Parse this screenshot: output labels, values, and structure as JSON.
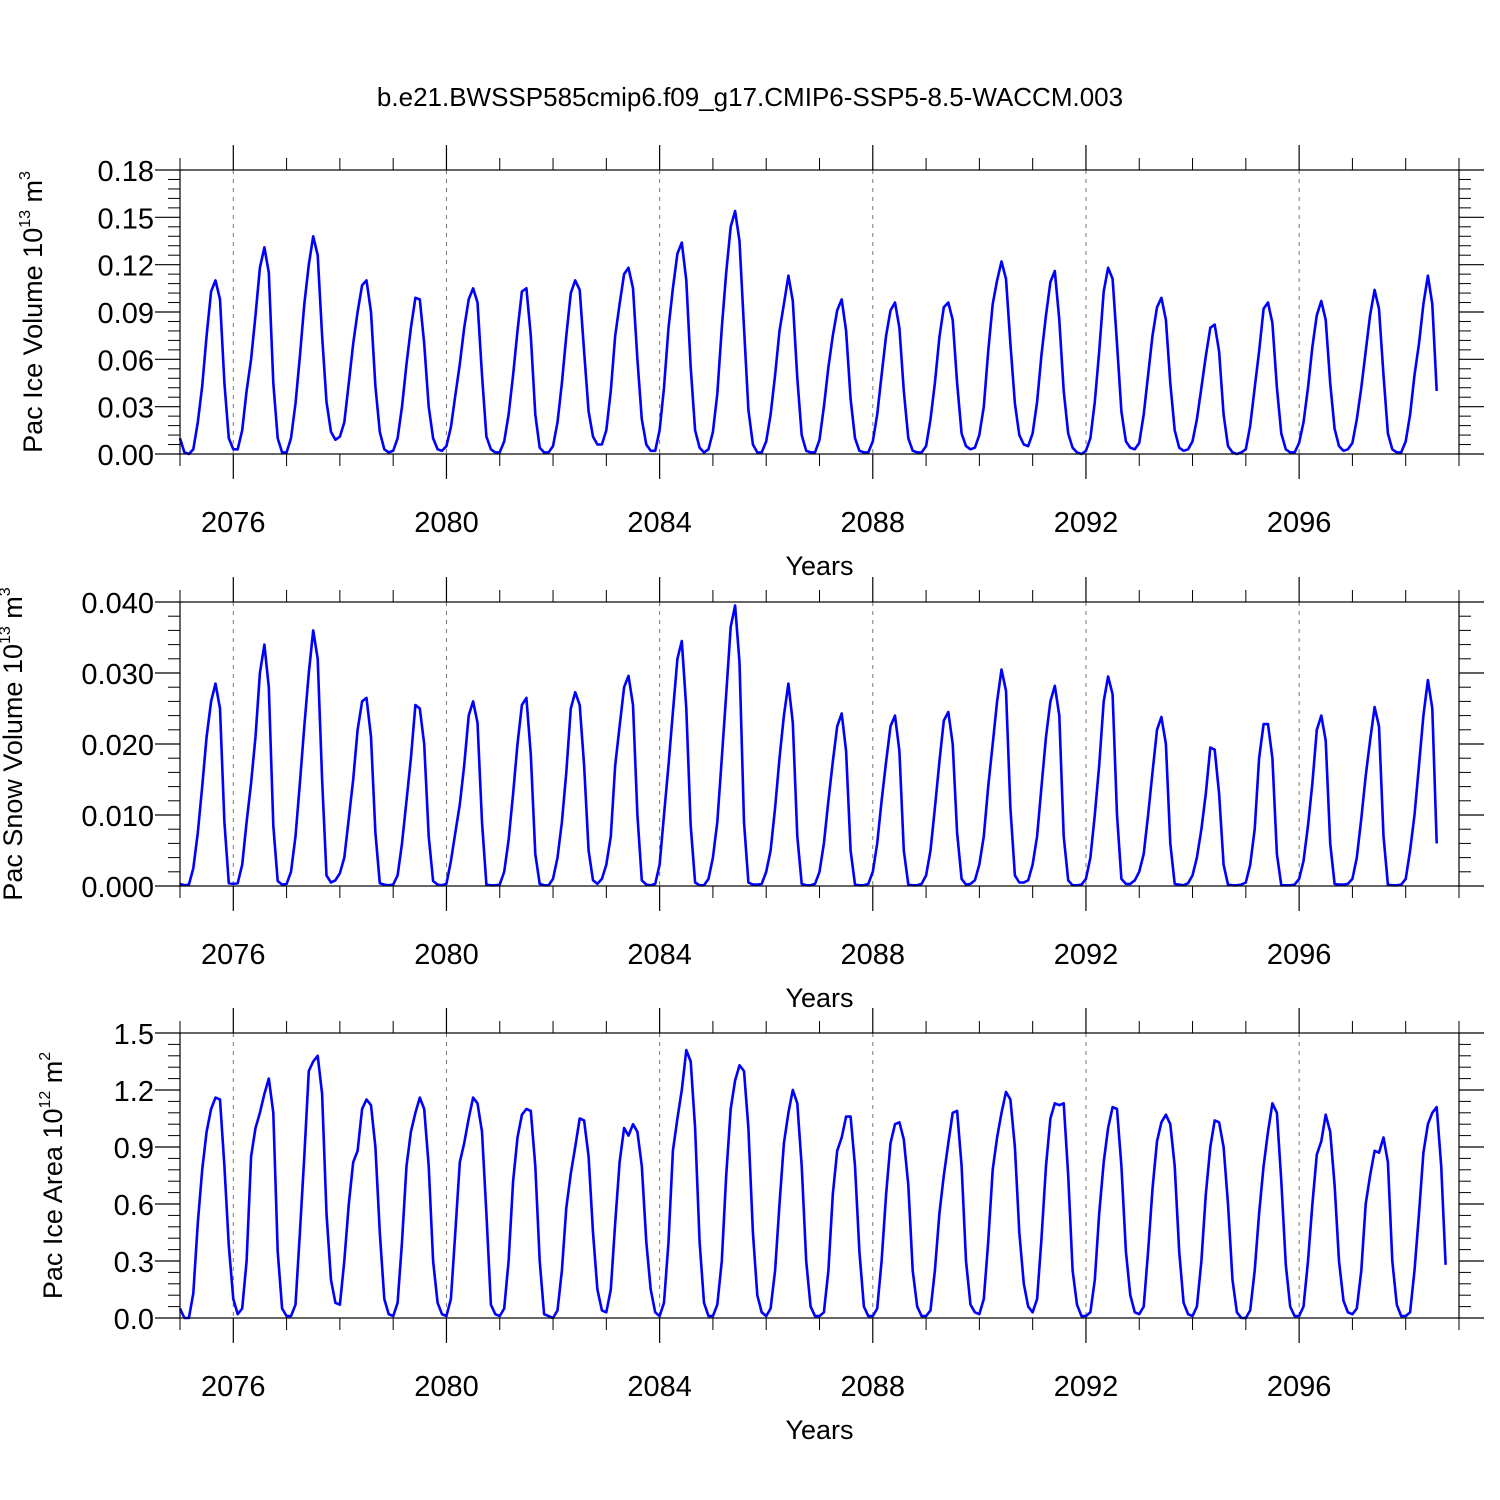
{
  "figure": {
    "title": "b.e21.BWSSP585cmip6.f09_g17.CMIP6-SSP5-8.5-WACCM.003"
  },
  "colors": {
    "series": "#0000ff",
    "axes": "#000000",
    "gridlines": "#777777"
  },
  "chart_data": [
    {
      "type": "line",
      "title": "",
      "xlabel": "Years",
      "ylabel": "Pac Ice Volume 10 m",
      "ylabel_parts": {
        "base": "Pac Ice Volume 10",
        "exp": "13",
        "unit": " m",
        "unit_exp": "3"
      },
      "xlim": [
        2075,
        2099
      ],
      "ylim": [
        0,
        0.18
      ],
      "x_ticks": [
        2076,
        2080,
        2084,
        2088,
        2092,
        2096
      ],
      "x_tick_labels": [
        "2076",
        "2080",
        "2084",
        "2088",
        "2092",
        "2096"
      ],
      "y_ticks": [
        0.0,
        0.03,
        0.06,
        0.09,
        0.12,
        0.15,
        0.18
      ],
      "y_tick_labels": [
        "0.00",
        "0.03",
        "0.06",
        "0.09",
        "0.12",
        "0.15",
        "0.18"
      ],
      "grid": "vertical dashed lines at labeled years",
      "series": [
        {
          "x_start": 2075.0,
          "x_step": 0.08333,
          "values": [
            0.01,
            0.001,
            0.0,
            0.003,
            0.02,
            0.043,
            0.075,
            0.103,
            0.11,
            0.098,
            0.045,
            0.01,
            0.003,
            0.003,
            0.015,
            0.04,
            0.06,
            0.088,
            0.118,
            0.131,
            0.115,
            0.045,
            0.01,
            0.001,
            0.001,
            0.01,
            0.032,
            0.062,
            0.095,
            0.12,
            0.138,
            0.126,
            0.075,
            0.033,
            0.014,
            0.009,
            0.011,
            0.02,
            0.045,
            0.07,
            0.09,
            0.107,
            0.11,
            0.09,
            0.043,
            0.014,
            0.003,
            0.001,
            0.002,
            0.01,
            0.03,
            0.057,
            0.08,
            0.099,
            0.098,
            0.07,
            0.03,
            0.01,
            0.003,
            0.002,
            0.005,
            0.017,
            0.037,
            0.057,
            0.08,
            0.098,
            0.105,
            0.096,
            0.05,
            0.011,
            0.003,
            0.001,
            0.001,
            0.008,
            0.025,
            0.05,
            0.078,
            0.103,
            0.105,
            0.075,
            0.025,
            0.004,
            0.001,
            0.001,
            0.005,
            0.02,
            0.045,
            0.075,
            0.102,
            0.11,
            0.104,
            0.065,
            0.027,
            0.011,
            0.006,
            0.006,
            0.015,
            0.04,
            0.075,
            0.095,
            0.114,
            0.118,
            0.105,
            0.06,
            0.022,
            0.006,
            0.002,
            0.002,
            0.015,
            0.042,
            0.08,
            0.105,
            0.127,
            0.134,
            0.11,
            0.055,
            0.015,
            0.004,
            0.001,
            0.003,
            0.014,
            0.038,
            0.08,
            0.115,
            0.144,
            0.154,
            0.135,
            0.08,
            0.028,
            0.006,
            0.001,
            0.001,
            0.008,
            0.025,
            0.05,
            0.078,
            0.095,
            0.113,
            0.097,
            0.048,
            0.012,
            0.002,
            0.001,
            0.001,
            0.009,
            0.03,
            0.055,
            0.075,
            0.091,
            0.098,
            0.078,
            0.035,
            0.01,
            0.002,
            0.001,
            0.001,
            0.008,
            0.025,
            0.05,
            0.075,
            0.091,
            0.096,
            0.08,
            0.04,
            0.01,
            0.002,
            0.001,
            0.001,
            0.005,
            0.022,
            0.045,
            0.074,
            0.093,
            0.096,
            0.085,
            0.045,
            0.013,
            0.005,
            0.003,
            0.004,
            0.012,
            0.03,
            0.065,
            0.095,
            0.11,
            0.122,
            0.111,
            0.07,
            0.032,
            0.012,
            0.006,
            0.005,
            0.013,
            0.033,
            0.063,
            0.088,
            0.109,
            0.116,
            0.085,
            0.04,
            0.013,
            0.004,
            0.001,
            0.0,
            0.002,
            0.01,
            0.033,
            0.065,
            0.103,
            0.118,
            0.111,
            0.07,
            0.027,
            0.008,
            0.004,
            0.003,
            0.007,
            0.025,
            0.05,
            0.075,
            0.093,
            0.099,
            0.085,
            0.045,
            0.015,
            0.004,
            0.002,
            0.003,
            0.008,
            0.022,
            0.042,
            0.062,
            0.08,
            0.082,
            0.065,
            0.025,
            0.005,
            0.001,
            0.0,
            0.001,
            0.003,
            0.018,
            0.042,
            0.065,
            0.092,
            0.096,
            0.083,
            0.042,
            0.013,
            0.003,
            0.001,
            0.001,
            0.007,
            0.02,
            0.042,
            0.068,
            0.088,
            0.097,
            0.085,
            0.045,
            0.016,
            0.005,
            0.002,
            0.003,
            0.007,
            0.022,
            0.042,
            0.065,
            0.088,
            0.104,
            0.092,
            0.05,
            0.013,
            0.003,
            0.001,
            0.001,
            0.008,
            0.025,
            0.05,
            0.07,
            0.095,
            0.113,
            0.095,
            0.04
          ]
        }
      ]
    },
    {
      "type": "line",
      "title": "",
      "xlabel": "Years",
      "ylabel": "Pac Snow Volume 10 m",
      "ylabel_parts": {
        "base": "Pac Snow Volume 10",
        "exp": "13",
        "unit": " m",
        "unit_exp": "3"
      },
      "xlim": [
        2075,
        2099
      ],
      "ylim": [
        0,
        0.04
      ],
      "x_ticks": [
        2076,
        2080,
        2084,
        2088,
        2092,
        2096
      ],
      "x_tick_labels": [
        "2076",
        "2080",
        "2084",
        "2088",
        "2092",
        "2096"
      ],
      "y_ticks": [
        0.0,
        0.01,
        0.02,
        0.03,
        0.04
      ],
      "y_tick_labels": [
        "0.000",
        "0.010",
        "0.020",
        "0.030",
        "0.040"
      ],
      "grid": "vertical dashed lines at labeled years",
      "series": [
        {
          "x_start": 2075.0,
          "x_step": 0.08333,
          "values": [
            0.0003,
            0.0001,
            0.0002,
            0.0025,
            0.0075,
            0.014,
            0.021,
            0.026,
            0.0285,
            0.025,
            0.009,
            0.0004,
            0.0003,
            0.0004,
            0.003,
            0.009,
            0.0145,
            0.021,
            0.03,
            0.034,
            0.028,
            0.0085,
            0.0007,
            0.0002,
            0.0003,
            0.002,
            0.007,
            0.0145,
            0.0225,
            0.03,
            0.036,
            0.032,
            0.015,
            0.0015,
            0.0005,
            0.0008,
            0.0018,
            0.004,
            0.0095,
            0.015,
            0.022,
            0.026,
            0.0265,
            0.021,
            0.0075,
            0.0004,
            0.0002,
            0.0001,
            0.0002,
            0.0015,
            0.006,
            0.012,
            0.018,
            0.0255,
            0.025,
            0.02,
            0.007,
            0.0007,
            0.0002,
            0.0001,
            0.0003,
            0.0035,
            0.0075,
            0.0115,
            0.017,
            0.024,
            0.026,
            0.023,
            0.009,
            0.0002,
            0.0001,
            0.0001,
            0.0002,
            0.002,
            0.0065,
            0.013,
            0.02,
            0.0255,
            0.0265,
            0.0185,
            0.0045,
            0.0003,
            0.0001,
            0.0001,
            0.001,
            0.004,
            0.009,
            0.016,
            0.025,
            0.0273,
            0.0255,
            0.017,
            0.005,
            0.0008,
            0.0003,
            0.001,
            0.003,
            0.007,
            0.017,
            0.0225,
            0.028,
            0.0296,
            0.0255,
            0.01,
            0.0008,
            0.0002,
            0.0001,
            0.0003,
            0.003,
            0.01,
            0.017,
            0.0245,
            0.032,
            0.0345,
            0.025,
            0.0085,
            0.0005,
            0.0001,
            0.0001,
            0.001,
            0.004,
            0.009,
            0.018,
            0.027,
            0.0365,
            0.0395,
            0.0315,
            0.009,
            0.0005,
            0.0002,
            0.0002,
            0.0003,
            0.002,
            0.005,
            0.011,
            0.018,
            0.024,
            0.0285,
            0.023,
            0.007,
            0.0003,
            0.0001,
            0.0001,
            0.0003,
            0.002,
            0.006,
            0.012,
            0.0175,
            0.0225,
            0.0243,
            0.019,
            0.005,
            0.0002,
            0.0001,
            0.0001,
            0.0003,
            0.002,
            0.006,
            0.012,
            0.0175,
            0.0225,
            0.024,
            0.019,
            0.005,
            0.0002,
            0.0001,
            0.0001,
            0.0003,
            0.0015,
            0.005,
            0.011,
            0.0175,
            0.0233,
            0.0245,
            0.02,
            0.0075,
            0.001,
            0.0002,
            0.0003,
            0.0008,
            0.003,
            0.007,
            0.014,
            0.02,
            0.026,
            0.0305,
            0.0275,
            0.011,
            0.0015,
            0.0005,
            0.0005,
            0.0008,
            0.003,
            0.007,
            0.014,
            0.021,
            0.026,
            0.0282,
            0.024,
            0.007,
            0.0008,
            0.0001,
            0.0001,
            0.0002,
            0.001,
            0.004,
            0.01,
            0.017,
            0.026,
            0.0295,
            0.027,
            0.01,
            0.001,
            0.0003,
            0.0003,
            0.0008,
            0.002,
            0.0045,
            0.01,
            0.016,
            0.022,
            0.0238,
            0.02,
            0.006,
            0.0003,
            0.0002,
            0.0001,
            0.0004,
            0.0015,
            0.004,
            0.008,
            0.013,
            0.0195,
            0.0192,
            0.013,
            0.003,
            0.0002,
            0.0001,
            0.0001,
            0.0002,
            0.0005,
            0.003,
            0.008,
            0.018,
            0.0228,
            0.0228,
            0.018,
            0.0045,
            0.0001,
            0.0001,
            0.0001,
            0.0002,
            0.001,
            0.0035,
            0.0085,
            0.0145,
            0.022,
            0.024,
            0.0205,
            0.006,
            0.0003,
            0.0002,
            0.0002,
            0.0003,
            0.001,
            0.004,
            0.0095,
            0.0155,
            0.0205,
            0.0252,
            0.0225,
            0.007,
            0.0002,
            0.0001,
            0.0001,
            0.0002,
            0.001,
            0.005,
            0.01,
            0.017,
            0.024,
            0.029,
            0.025,
            0.006
          ]
        }
      ]
    },
    {
      "type": "line",
      "title": "",
      "xlabel": "Years",
      "ylabel": "Pac Ice Area 10 m",
      "ylabel_parts": {
        "base": "Pac Ice Area 10",
        "exp": "12",
        "unit": " m",
        "unit_exp": "2"
      },
      "xlim": [
        2075,
        2099
      ],
      "ylim": [
        0,
        1.5
      ],
      "x_ticks": [
        2076,
        2080,
        2084,
        2088,
        2092,
        2096
      ],
      "x_tick_labels": [
        "2076",
        "2080",
        "2084",
        "2088",
        "2092",
        "2096"
      ],
      "y_ticks": [
        0.0,
        0.3,
        0.6,
        0.9,
        1.2,
        1.5
      ],
      "y_tick_labels": [
        "0.0",
        "0.3",
        "0.6",
        "0.9",
        "1.2",
        "1.5"
      ],
      "grid": "vertical dashed lines at labeled years",
      "series": [
        {
          "x_start": 2075.0,
          "x_step": 0.08333,
          "values": [
            0.05,
            0.0,
            0.0,
            0.13,
            0.5,
            0.78,
            0.98,
            1.1,
            1.16,
            1.15,
            0.8,
            0.38,
            0.1,
            0.02,
            0.05,
            0.3,
            0.85,
            1.0,
            1.08,
            1.18,
            1.26,
            1.08,
            0.35,
            0.05,
            0.01,
            0.01,
            0.07,
            0.45,
            0.85,
            1.3,
            1.35,
            1.38,
            1.18,
            0.55,
            0.2,
            0.08,
            0.07,
            0.3,
            0.6,
            0.82,
            0.88,
            1.1,
            1.15,
            1.12,
            0.9,
            0.45,
            0.1,
            0.02,
            0.01,
            0.08,
            0.4,
            0.8,
            0.98,
            1.08,
            1.16,
            1.1,
            0.8,
            0.3,
            0.08,
            0.02,
            0.01,
            0.1,
            0.45,
            0.82,
            0.92,
            1.05,
            1.16,
            1.13,
            0.98,
            0.55,
            0.07,
            0.02,
            0.01,
            0.05,
            0.3,
            0.72,
            0.95,
            1.07,
            1.1,
            1.09,
            0.8,
            0.3,
            0.02,
            0.01,
            0.0,
            0.04,
            0.25,
            0.58,
            0.76,
            0.9,
            1.05,
            1.04,
            0.85,
            0.45,
            0.15,
            0.04,
            0.03,
            0.15,
            0.5,
            0.82,
            1.0,
            0.96,
            1.02,
            0.98,
            0.8,
            0.4,
            0.15,
            0.03,
            0.01,
            0.08,
            0.4,
            0.88,
            1.05,
            1.2,
            1.41,
            1.35,
            1.0,
            0.4,
            0.08,
            0.01,
            0.01,
            0.07,
            0.3,
            0.75,
            1.1,
            1.25,
            1.33,
            1.3,
            1.0,
            0.45,
            0.12,
            0.03,
            0.01,
            0.05,
            0.25,
            0.6,
            0.92,
            1.08,
            1.2,
            1.13,
            0.8,
            0.3,
            0.06,
            0.01,
            0.01,
            0.03,
            0.25,
            0.65,
            0.88,
            0.95,
            1.06,
            1.06,
            0.8,
            0.35,
            0.06,
            0.01,
            0.01,
            0.05,
            0.3,
            0.65,
            0.92,
            1.02,
            1.03,
            0.94,
            0.7,
            0.25,
            0.06,
            0.01,
            0.01,
            0.04,
            0.25,
            0.55,
            0.75,
            0.92,
            1.08,
            1.09,
            0.8,
            0.3,
            0.07,
            0.03,
            0.02,
            0.1,
            0.4,
            0.78,
            0.95,
            1.08,
            1.19,
            1.15,
            0.9,
            0.45,
            0.18,
            0.06,
            0.03,
            0.1,
            0.42,
            0.8,
            1.05,
            1.13,
            1.12,
            1.13,
            0.75,
            0.25,
            0.07,
            0.01,
            0.01,
            0.03,
            0.2,
            0.55,
            0.82,
            1.0,
            1.11,
            1.1,
            0.8,
            0.35,
            0.12,
            0.03,
            0.02,
            0.06,
            0.35,
            0.68,
            0.93,
            1.03,
            1.07,
            1.02,
            0.8,
            0.35,
            0.08,
            0.02,
            0.01,
            0.06,
            0.3,
            0.65,
            0.9,
            1.04,
            1.03,
            0.9,
            0.6,
            0.2,
            0.03,
            0.0,
            0.0,
            0.04,
            0.25,
            0.55,
            0.8,
            0.98,
            1.13,
            1.08,
            0.72,
            0.28,
            0.06,
            0.01,
            0.01,
            0.06,
            0.3,
            0.6,
            0.86,
            0.93,
            1.07,
            0.98,
            0.7,
            0.3,
            0.09,
            0.03,
            0.02,
            0.05,
            0.25,
            0.6,
            0.75,
            0.88,
            0.87,
            0.95,
            0.82,
            0.3,
            0.07,
            0.01,
            0.01,
            0.03,
            0.25,
            0.55,
            0.87,
            1.02,
            1.08,
            1.11,
            0.8,
            0.28
          ]
        }
      ]
    }
  ]
}
